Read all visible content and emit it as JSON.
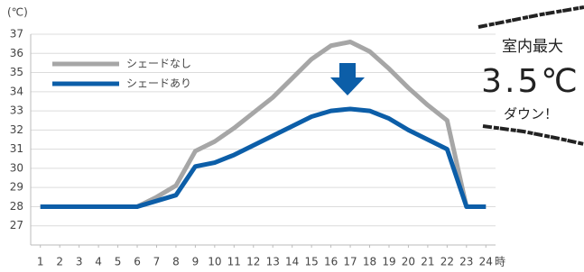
{
  "chart_data": {
    "type": "line",
    "y_label": "(℃)",
    "x_label": "時",
    "x": [
      1,
      2,
      3,
      4,
      5,
      6,
      7,
      8,
      9,
      10,
      11,
      12,
      13,
      14,
      15,
      16,
      17,
      18,
      19,
      20,
      21,
      22,
      23,
      24
    ],
    "xlim": [
      0.5,
      24.5
    ],
    "xticks": [
      1,
      2,
      3,
      4,
      5,
      6,
      7,
      8,
      9,
      10,
      11,
      12,
      13,
      14,
      15,
      16,
      17,
      18,
      19,
      20,
      21,
      22,
      23,
      24
    ],
    "ylim": [
      26,
      37
    ],
    "yticks": [
      27,
      28,
      29,
      30,
      31,
      32,
      33,
      34,
      35,
      36,
      37
    ],
    "grid": true,
    "legend": "upper-left",
    "series": [
      {
        "name": "シェードなし",
        "color": "#a6a6a6",
        "values": [
          28,
          28,
          28,
          28,
          28,
          28,
          28.5,
          29.1,
          30.9,
          31.4,
          32.1,
          32.9,
          33.7,
          34.7,
          35.7,
          36.4,
          36.6,
          36.1,
          35.2,
          34.2,
          33.3,
          32.5,
          28,
          28
        ]
      },
      {
        "name": "シェードあり",
        "color": "#0c5ea8",
        "values": [
          28,
          28,
          28,
          28,
          28,
          28,
          28.3,
          28.6,
          30.1,
          30.3,
          30.7,
          31.2,
          31.7,
          32.2,
          32.7,
          33.0,
          33.1,
          33.0,
          32.6,
          32.0,
          31.5,
          31.0,
          28,
          28
        ]
      }
    ],
    "annotations": [
      "室内最大",
      "3.5℃",
      "ダウン！"
    ]
  }
}
